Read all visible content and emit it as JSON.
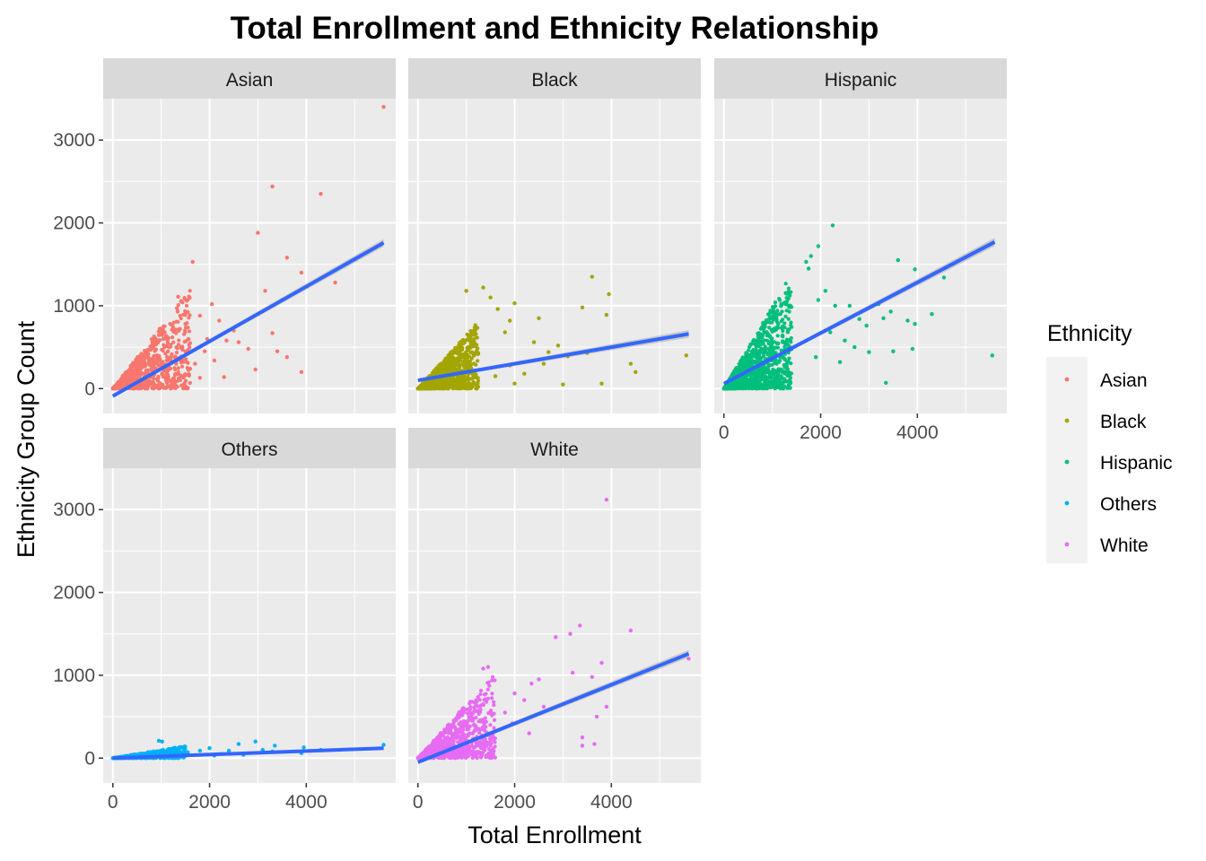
{
  "chart_data": {
    "type": "scatter",
    "title": "Total Enrollment and Ethnicity Relationship",
    "xlabel": "Total Enrollment",
    "ylabel": "Ethnicity Group Count",
    "xlim": [
      -200,
      5850
    ],
    "ylim": [
      -300,
      3500
    ],
    "x_ticks": [
      0,
      2000,
      4000
    ],
    "y_ticks": [
      0,
      1000,
      2000,
      3000
    ],
    "x_minor": [
      1000,
      3000,
      5000
    ],
    "y_minor": [
      500,
      1500,
      2500
    ],
    "grid": true,
    "legend": {
      "title": "Ethnicity",
      "placement": "right",
      "entries": [
        "Asian",
        "Black",
        "Hispanic",
        "Others",
        "White"
      ]
    },
    "colors": {
      "Asian": "#F8766D",
      "Black": "#A3A500",
      "Hispanic": "#00BF7D",
      "Others": "#00B0F6",
      "White": "#E76BF3",
      "fit_line": "#3366FF",
      "confidence_band": "#999999"
    },
    "facets": [
      {
        "label": "Asian",
        "fit": {
          "x": [
            0,
            5600
          ],
          "y": [
            -90,
            1760
          ]
        },
        "ci_half_width": [
          20,
          45
        ],
        "cloud": {
          "x_max": 1600,
          "y_frac": 0.75,
          "n": 900,
          "seed": 11
        },
        "points": [
          {
            "x": 5600,
            "y": 3400
          },
          {
            "x": 3300,
            "y": 2440
          },
          {
            "x": 4300,
            "y": 2350
          },
          {
            "x": 3000,
            "y": 1880
          },
          {
            "x": 1650,
            "y": 1530
          },
          {
            "x": 3600,
            "y": 1580
          },
          {
            "x": 3900,
            "y": 1400
          },
          {
            "x": 4600,
            "y": 1280
          },
          {
            "x": 3150,
            "y": 1180
          },
          {
            "x": 3500,
            "y": 1070
          },
          {
            "x": 2050,
            "y": 1020
          },
          {
            "x": 1350,
            "y": 1110
          },
          {
            "x": 1800,
            "y": 880
          },
          {
            "x": 2200,
            "y": 820
          },
          {
            "x": 2500,
            "y": 700
          },
          {
            "x": 2350,
            "y": 580
          },
          {
            "x": 3300,
            "y": 670
          },
          {
            "x": 3600,
            "y": 380
          },
          {
            "x": 2800,
            "y": 480
          },
          {
            "x": 2600,
            "y": 560
          },
          {
            "x": 3400,
            "y": 450
          },
          {
            "x": 1900,
            "y": 450
          },
          {
            "x": 2100,
            "y": 340
          },
          {
            "x": 2950,
            "y": 230
          },
          {
            "x": 3900,
            "y": 200
          },
          {
            "x": 2300,
            "y": 140
          },
          {
            "x": 1800,
            "y": 130
          },
          {
            "x": 1700,
            "y": 300
          },
          {
            "x": 1950,
            "y": 600
          },
          {
            "x": 1500,
            "y": 780
          }
        ]
      },
      {
        "label": "Black",
        "fit": {
          "x": [
            0,
            5600
          ],
          "y": [
            100,
            660
          ]
        },
        "ci_half_width": [
          15,
          45
        ],
        "cloud": {
          "x_max": 1250,
          "y_frac": 0.65,
          "n": 1300,
          "seed": 23
        },
        "points": [
          {
            "x": 3600,
            "y": 1350
          },
          {
            "x": 1350,
            "y": 1220
          },
          {
            "x": 1000,
            "y": 1180
          },
          {
            "x": 1500,
            "y": 1100
          },
          {
            "x": 3950,
            "y": 1140
          },
          {
            "x": 2000,
            "y": 1030
          },
          {
            "x": 3400,
            "y": 980
          },
          {
            "x": 1650,
            "y": 960
          },
          {
            "x": 3900,
            "y": 890
          },
          {
            "x": 1900,
            "y": 820
          },
          {
            "x": 2500,
            "y": 850
          },
          {
            "x": 1800,
            "y": 680
          },
          {
            "x": 2400,
            "y": 560
          },
          {
            "x": 2900,
            "y": 520
          },
          {
            "x": 3100,
            "y": 390
          },
          {
            "x": 3500,
            "y": 430
          },
          {
            "x": 5550,
            "y": 400
          },
          {
            "x": 4400,
            "y": 300
          },
          {
            "x": 2600,
            "y": 300
          },
          {
            "x": 1900,
            "y": 280
          },
          {
            "x": 2200,
            "y": 180
          },
          {
            "x": 1600,
            "y": 150
          },
          {
            "x": 3800,
            "y": 60
          },
          {
            "x": 3000,
            "y": 50
          },
          {
            "x": 2000,
            "y": 60
          },
          {
            "x": 4500,
            "y": 200
          },
          {
            "x": 2700,
            "y": 440
          }
        ]
      },
      {
        "label": "Hispanic",
        "fit": {
          "x": [
            0,
            5600
          ],
          "y": [
            60,
            1770
          ]
        },
        "ci_half_width": [
          15,
          50
        ],
        "cloud": {
          "x_max": 1400,
          "y_frac": 1.0,
          "n": 1300,
          "seed": 37
        },
        "points": [
          {
            "x": 2250,
            "y": 1970
          },
          {
            "x": 1950,
            "y": 1720
          },
          {
            "x": 1800,
            "y": 1600
          },
          {
            "x": 1700,
            "y": 1530
          },
          {
            "x": 3600,
            "y": 1550
          },
          {
            "x": 3950,
            "y": 1440
          },
          {
            "x": 1750,
            "y": 1450
          },
          {
            "x": 4550,
            "y": 1340
          },
          {
            "x": 2100,
            "y": 1180
          },
          {
            "x": 1950,
            "y": 1070
          },
          {
            "x": 2300,
            "y": 1000
          },
          {
            "x": 3200,
            "y": 1020
          },
          {
            "x": 2600,
            "y": 1000
          },
          {
            "x": 3450,
            "y": 930
          },
          {
            "x": 2800,
            "y": 840
          },
          {
            "x": 3300,
            "y": 850
          },
          {
            "x": 4300,
            "y": 900
          },
          {
            "x": 3800,
            "y": 820
          },
          {
            "x": 3950,
            "y": 780
          },
          {
            "x": 2950,
            "y": 760
          },
          {
            "x": 2200,
            "y": 680
          },
          {
            "x": 2500,
            "y": 580
          },
          {
            "x": 3900,
            "y": 480
          },
          {
            "x": 3500,
            "y": 450
          },
          {
            "x": 3000,
            "y": 440
          },
          {
            "x": 2700,
            "y": 500
          },
          {
            "x": 5550,
            "y": 400
          },
          {
            "x": 3350,
            "y": 70
          },
          {
            "x": 2400,
            "y": 320
          },
          {
            "x": 1900,
            "y": 380
          }
        ]
      },
      {
        "label": "Others",
        "fit": {
          "x": [
            0,
            5600
          ],
          "y": [
            0,
            120
          ]
        },
        "ci_half_width": [
          8,
          15
        ],
        "cloud": {
          "x_max": 1500,
          "y_frac": 0.1,
          "n": 700,
          "seed": 41
        },
        "points": [
          {
            "x": 950,
            "y": 210
          },
          {
            "x": 1020,
            "y": 200
          },
          {
            "x": 2950,
            "y": 200
          },
          {
            "x": 3350,
            "y": 150
          },
          {
            "x": 2600,
            "y": 170
          },
          {
            "x": 3950,
            "y": 130
          },
          {
            "x": 5600,
            "y": 160
          },
          {
            "x": 4300,
            "y": 100
          },
          {
            "x": 2000,
            "y": 120
          },
          {
            "x": 2400,
            "y": 90
          },
          {
            "x": 1800,
            "y": 90
          },
          {
            "x": 3300,
            "y": 80
          },
          {
            "x": 3900,
            "y": 60
          },
          {
            "x": 2250,
            "y": 50
          },
          {
            "x": 1550,
            "y": 70
          },
          {
            "x": 2700,
            "y": 40
          },
          {
            "x": 3100,
            "y": 100
          },
          {
            "x": 2100,
            "y": 30
          }
        ]
      },
      {
        "label": "White",
        "fit": {
          "x": [
            0,
            5600
          ],
          "y": [
            -50,
            1260
          ]
        },
        "ci_half_width": [
          20,
          45
        ],
        "cloud": {
          "x_max": 1600,
          "y_frac": 0.65,
          "n": 1000,
          "seed": 53
        },
        "points": [
          {
            "x": 3900,
            "y": 3120
          },
          {
            "x": 3350,
            "y": 1600
          },
          {
            "x": 3150,
            "y": 1500
          },
          {
            "x": 4400,
            "y": 1540
          },
          {
            "x": 2850,
            "y": 1460
          },
          {
            "x": 3800,
            "y": 1150
          },
          {
            "x": 5600,
            "y": 1200
          },
          {
            "x": 3200,
            "y": 1030
          },
          {
            "x": 3600,
            "y": 980
          },
          {
            "x": 2500,
            "y": 950
          },
          {
            "x": 2350,
            "y": 900
          },
          {
            "x": 1450,
            "y": 1100
          },
          {
            "x": 1350,
            "y": 1080
          },
          {
            "x": 2000,
            "y": 780
          },
          {
            "x": 2200,
            "y": 700
          },
          {
            "x": 2600,
            "y": 620
          },
          {
            "x": 3900,
            "y": 620
          },
          {
            "x": 3700,
            "y": 500
          },
          {
            "x": 3400,
            "y": 250
          },
          {
            "x": 3650,
            "y": 170
          },
          {
            "x": 3400,
            "y": 150
          },
          {
            "x": 1800,
            "y": 550
          },
          {
            "x": 1950,
            "y": 420
          },
          {
            "x": 2300,
            "y": 300
          }
        ]
      }
    ]
  }
}
